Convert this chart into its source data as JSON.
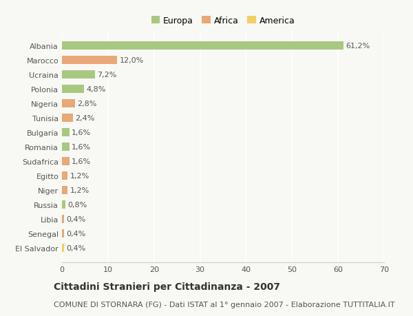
{
  "countries": [
    "Albania",
    "Marocco",
    "Ucraina",
    "Polonia",
    "Nigeria",
    "Tunisia",
    "Bulgaria",
    "Romania",
    "Sudafrica",
    "Egitto",
    "Niger",
    "Russia",
    "Libia",
    "Senegal",
    "El Salvador"
  ],
  "values": [
    61.2,
    12.0,
    7.2,
    4.8,
    2.8,
    2.4,
    1.6,
    1.6,
    1.6,
    1.2,
    1.2,
    0.8,
    0.4,
    0.4,
    0.4
  ],
  "labels": [
    "61,2%",
    "12,0%",
    "7,2%",
    "4,8%",
    "2,8%",
    "2,4%",
    "1,6%",
    "1,6%",
    "1,6%",
    "1,2%",
    "1,2%",
    "0,8%",
    "0,4%",
    "0,4%",
    "0,4%"
  ],
  "continents": [
    "Europa",
    "Africa",
    "Europa",
    "Europa",
    "Africa",
    "Africa",
    "Europa",
    "Europa",
    "Africa",
    "Africa",
    "Africa",
    "Europa",
    "Africa",
    "Africa",
    "America"
  ],
  "colors": {
    "Europa": "#a8c882",
    "Africa": "#e8a878",
    "America": "#f0d060"
  },
  "legend_labels": [
    "Europa",
    "Africa",
    "America"
  ],
  "legend_colors": [
    "#a8c882",
    "#e8a878",
    "#f0d060"
  ],
  "xlim": [
    0,
    70
  ],
  "xticks": [
    0,
    10,
    20,
    30,
    40,
    50,
    60,
    70
  ],
  "title": "Cittadini Stranieri per Cittadinanza - 2007",
  "subtitle": "COMUNE DI STORNARA (FG) - Dati ISTAT al 1° gennaio 2007 - Elaborazione TUTTITALIA.IT",
  "background_color": "#f8f8f4",
  "grid_color": "#ffffff",
  "bar_height": 0.55,
  "title_fontsize": 10,
  "subtitle_fontsize": 8,
  "label_fontsize": 8,
  "tick_fontsize": 8
}
